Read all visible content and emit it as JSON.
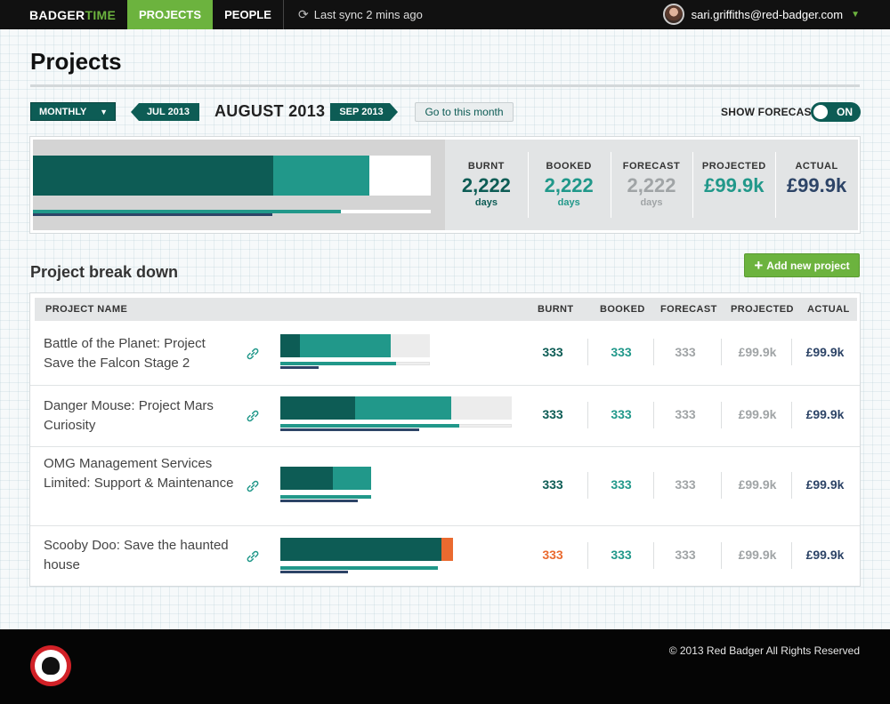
{
  "topbar": {
    "brand_a": "BADGER",
    "brand_b": "TIME",
    "nav": [
      "PROJECTS",
      "PEOPLE"
    ],
    "sync_text": "Last sync 2 mins ago",
    "user_email": "sari.griffiths@red-badger.com"
  },
  "page": {
    "title": "Projects"
  },
  "controls": {
    "period": "MONTHLY",
    "prev_month": "JUL 2013",
    "current_month": "AUGUST 2013",
    "next_month": "SEP 2013",
    "goto_label": "Go to this month",
    "forecast_label": "SHOW FORECAST",
    "forecast_toggle": "ON"
  },
  "summary": {
    "stats": [
      {
        "label": "BURNT",
        "value": "2,222",
        "unit": "days"
      },
      {
        "label": "BOOKED",
        "value": "2,222",
        "unit": "days"
      },
      {
        "label": "FORECAST",
        "value": "2,222",
        "unit": "days"
      },
      {
        "label": "PROJECTED",
        "value": "£99.9k",
        "unit": ""
      },
      {
        "label": "ACTUAL",
        "value": "£99.9k",
        "unit": ""
      }
    ],
    "bar": {
      "burnt_fraction": 0.605,
      "booked_fraction": 0.24,
      "projected_fraction": 0.775,
      "actual_fraction": 0.602
    }
  },
  "breakdown": {
    "title": "Project break down",
    "add_label": "Add new project",
    "columns": [
      "PROJECT NAME",
      "BURNT",
      "BOOKED",
      "FORECAST",
      "PROJECTED",
      "ACTUAL"
    ],
    "rows": [
      {
        "name": "Battle of the Planet: Project Save the Falcon Stage 2",
        "burnt": "333",
        "booked": "333",
        "forecast": "333",
        "projected": "£99.9k",
        "actual": "£99.9k",
        "burnt_over": false
      },
      {
        "name": "Danger Mouse: Project Mars Curiosity",
        "burnt": "333",
        "booked": "333",
        "forecast": "333",
        "projected": "£99.9k",
        "actual": "£99.9k",
        "burnt_over": false
      },
      {
        "name": "OMG Management Services Limited: Support & Maintenance",
        "burnt": "333",
        "booked": "333",
        "forecast": "333",
        "projected": "£99.9k",
        "actual": "£99.9k",
        "burnt_over": false
      },
      {
        "name": "Scooby Doo: Save the haunted house",
        "burnt": "333",
        "booked": "333",
        "forecast": "333",
        "projected": "£99.9k",
        "actual": "£99.9k",
        "burnt_over": true
      }
    ]
  },
  "footer": {
    "copyright": "© 2013 Red Badger All Rights Reserved"
  },
  "colors": {
    "dark_teal": "#0d5c55",
    "teal": "#21988a",
    "grey": "#a0a4a6",
    "navy": "#2d4467",
    "green": "#6cb33e",
    "orange": "#ea6a2f"
  },
  "icons": [
    "sync-icon",
    "chevron-down-icon",
    "link-icon",
    "plus-icon",
    "badger-logo-icon"
  ]
}
